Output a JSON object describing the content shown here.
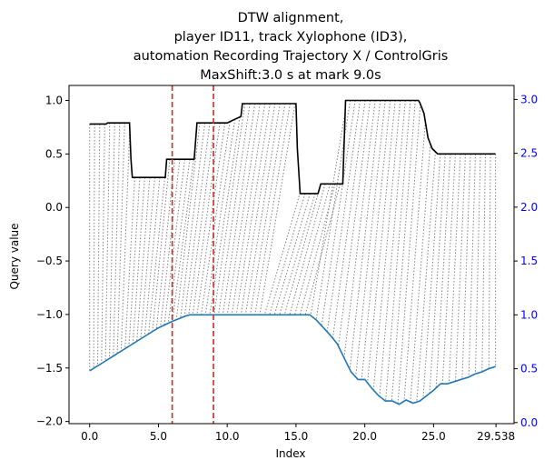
{
  "chart_data": {
    "type": "line",
    "title_lines": [
      "DTW alignment,",
      "player ID11, track Xylophone (ID3),",
      "automation Recording Trajectory X / ControlGris",
      "MaxShift:3.0 s at mark 9.0s"
    ],
    "xlabel": "Index",
    "ylabel": "Query value",
    "xlim": [
      -1.5,
      30.85
    ],
    "ylim": [
      -2.02,
      1.14
    ],
    "y2lim": [
      -0.01,
      3.13
    ],
    "x_ticks": [
      0,
      5,
      10,
      15,
      20,
      25,
      29.538
    ],
    "x_tick_labels": [
      "0.0",
      "5.0",
      "10.0",
      "15.0",
      "20.0",
      "25.0",
      "29.538"
    ],
    "y_ticks": [
      1.0,
      0.5,
      0.0,
      -0.5,
      -1.0,
      -1.5,
      -2.0
    ],
    "y_tick_labels": [
      "1.0",
      "0.5",
      "0.0",
      "−0.5",
      "−1.0",
      "−1.5",
      "−2.0"
    ],
    "y2_ticks": [
      3.0,
      2.5,
      2.0,
      1.5,
      1.0,
      0.5,
      0.0
    ],
    "y2_tick_labels": [
      "3.0",
      "2.5",
      "2.0",
      "1.5",
      "1.0",
      "0.5",
      "0.0"
    ],
    "vlines": [
      6.0,
      9.0
    ],
    "colors": {
      "query": "#000000",
      "reference": "#1f77b4",
      "vline": "#d62728",
      "warp": "#808080",
      "right_axis": "#0000ff"
    },
    "series": [
      {
        "axis": "left",
        "x": [
          0,
          1.2,
          1.3,
          2.9,
          3.0,
          3.1,
          5.5,
          5.6,
          7.6,
          7.8,
          9.9,
          10.0,
          11.0,
          11.1,
          15.0,
          15.1,
          15.3,
          16.6,
          16.8,
          18.4,
          18.5,
          18.6,
          23.9,
          24.0,
          24.3,
          24.6,
          24.9,
          25.3,
          29.5
        ],
        "values": [
          0.78,
          0.78,
          0.79,
          0.79,
          0.45,
          0.28,
          0.28,
          0.45,
          0.45,
          0.79,
          0.79,
          0.79,
          0.85,
          0.97,
          0.97,
          0.55,
          0.13,
          0.13,
          0.22,
          0.22,
          0.6,
          1.0,
          1.0,
          0.98,
          0.88,
          0.65,
          0.55,
          0.5,
          0.5
        ]
      },
      {
        "axis": "right",
        "x": [
          0,
          1,
          2,
          3,
          4,
          5,
          6,
          7,
          7.3,
          8,
          9,
          10,
          11,
          12,
          13,
          14,
          15,
          16,
          16.5,
          17,
          17.5,
          18,
          18.5,
          19,
          19.5,
          20,
          20.5,
          21,
          21.5,
          22,
          22.5,
          23,
          23.5,
          24,
          24.5,
          25,
          25.5,
          26,
          26.5,
          27,
          27.5,
          28,
          28.5,
          29,
          29.5
        ],
        "values": [
          0.48,
          0.56,
          0.64,
          0.72,
          0.8,
          0.88,
          0.94,
          0.99,
          1.0,
          1.0,
          1.0,
          1.0,
          1.0,
          1.0,
          1.0,
          1.0,
          1.0,
          1.0,
          0.95,
          0.88,
          0.81,
          0.73,
          0.6,
          0.47,
          0.4,
          0.4,
          0.32,
          0.25,
          0.2,
          0.2,
          0.17,
          0.21,
          0.18,
          0.2,
          0.25,
          0.3,
          0.36,
          0.36,
          0.38,
          0.4,
          0.42,
          0.45,
          0.47,
          0.5,
          0.52
        ]
      }
    ]
  }
}
